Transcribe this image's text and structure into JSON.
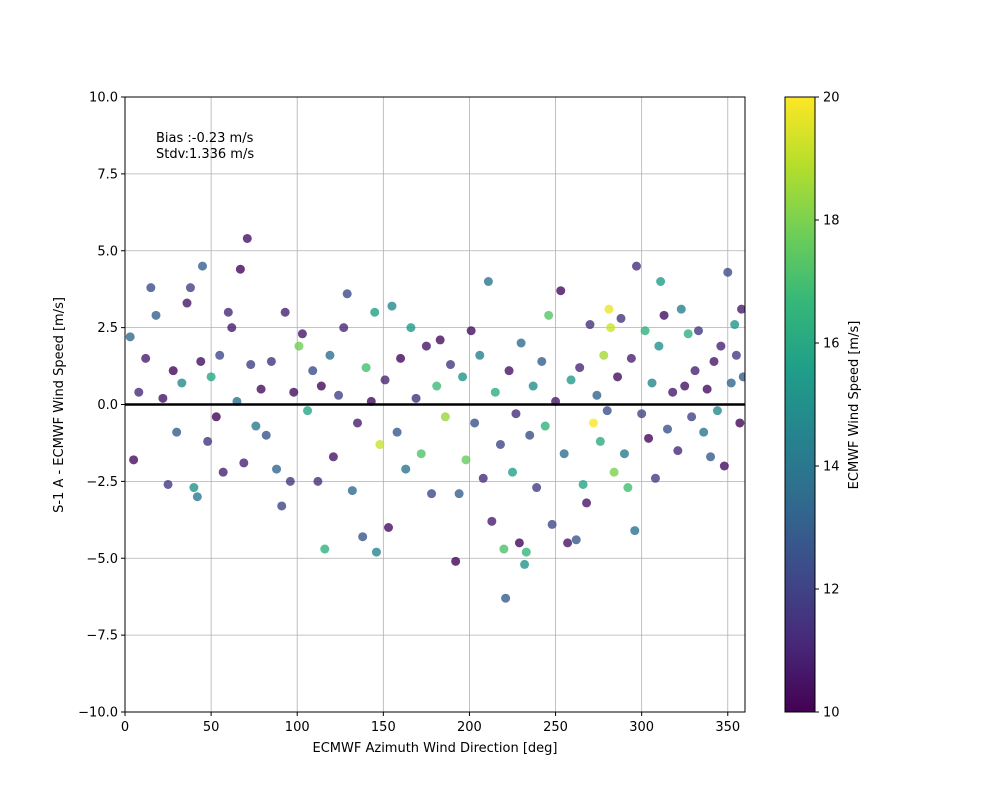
{
  "chart_data": {
    "type": "scatter",
    "title": "",
    "xlabel": "ECMWF Azimuth Wind Direction [deg]",
    "ylabel": "S-1 A - ECMWF Wind Speed [m/s]",
    "xlim": [
      0,
      360
    ],
    "ylim": [
      -10,
      10
    ],
    "xticks": [
      0,
      50,
      100,
      150,
      200,
      250,
      300,
      350
    ],
    "yticks": [
      -10.0,
      -7.5,
      -5.0,
      -2.5,
      0.0,
      2.5,
      5.0,
      7.5,
      10.0
    ],
    "ytick_labels": [
      "−10.0",
      "−7.5",
      "−5.0",
      "−2.5",
      "0.0",
      "2.5",
      "5.0",
      "7.5",
      "10.0"
    ],
    "grid": true,
    "zero_line": 0,
    "annotation_lines": [
      "Bias :-0.23 m/s",
      "Stdv:1.336 m/s"
    ],
    "colorbar": {
      "label": "ECMWF Wind Speed [m/s]",
      "range": [
        10,
        20
      ],
      "ticks": [
        10,
        12,
        14,
        16,
        18,
        20
      ],
      "colormap": "viridis",
      "colors": [
        "#440154",
        "#482878",
        "#3e4989",
        "#31688e",
        "#26828e",
        "#1f9e89",
        "#35b779",
        "#6ece58",
        "#b5de2b",
        "#fde725"
      ]
    },
    "points": [
      [
        3,
        2.2,
        13.5
      ],
      [
        5,
        -1.8,
        10.3
      ],
      [
        8,
        0.4,
        11.2
      ],
      [
        12,
        1.5,
        10.8
      ],
      [
        15,
        3.8,
        12.4
      ],
      [
        18,
        2.9,
        13.1
      ],
      [
        22,
        0.2,
        10.5
      ],
      [
        25,
        -2.6,
        11.7
      ],
      [
        28,
        1.1,
        10.2
      ],
      [
        30,
        -0.9,
        12.9
      ],
      [
        33,
        0.7,
        14.8
      ],
      [
        36,
        3.3,
        10.6
      ],
      [
        38,
        3.8,
        12.0
      ],
      [
        40,
        -2.7,
        15.2
      ],
      [
        42,
        -3.0,
        14.1
      ],
      [
        44,
        1.4,
        10.4
      ],
      [
        45,
        4.5,
        13.0
      ],
      [
        48,
        -1.2,
        11.5
      ],
      [
        50,
        0.9,
        16.0
      ],
      [
        53,
        -0.4,
        10.1
      ],
      [
        55,
        1.6,
        12.2
      ],
      [
        57,
        -2.2,
        10.9
      ],
      [
        60,
        3.0,
        11.1
      ],
      [
        62,
        2.5,
        10.7
      ],
      [
        65,
        0.1,
        13.8
      ],
      [
        67,
        4.4,
        10.2
      ],
      [
        69,
        -1.9,
        11.0
      ],
      [
        71,
        5.4,
        10.5
      ],
      [
        73,
        1.3,
        11.9
      ],
      [
        76,
        -0.7,
        14.0
      ],
      [
        79,
        0.5,
        10.3
      ],
      [
        82,
        -1.0,
        12.6
      ],
      [
        85,
        1.4,
        11.4
      ],
      [
        88,
        -2.1,
        13.3
      ],
      [
        91,
        -3.3,
        12.1
      ],
      [
        93,
        3.0,
        10.9
      ],
      [
        96,
        -2.5,
        11.6
      ],
      [
        98,
        0.4,
        10.4
      ],
      [
        101,
        1.9,
        17.8
      ],
      [
        103,
        2.3,
        10.6
      ],
      [
        106,
        -0.2,
        15.9
      ],
      [
        109,
        1.1,
        12.4
      ],
      [
        112,
        -2.5,
        11.3
      ],
      [
        114,
        0.6,
        10.2
      ],
      [
        116,
        -4.7,
        16.4
      ],
      [
        119,
        1.6,
        13.6
      ],
      [
        121,
        -1.7,
        10.5
      ],
      [
        124,
        0.3,
        12.0
      ],
      [
        127,
        2.5,
        11.1
      ],
      [
        129,
        3.6,
        12.3
      ],
      [
        132,
        -2.8,
        13.4
      ],
      [
        135,
        -0.6,
        10.8
      ],
      [
        138,
        -4.3,
        12.7
      ],
      [
        140,
        1.2,
        17.0
      ],
      [
        143,
        0.1,
        10.3
      ],
      [
        145,
        3.0,
        15.6
      ],
      [
        146,
        -4.8,
        14.6
      ],
      [
        148,
        -1.3,
        19.2
      ],
      [
        151,
        0.8,
        11.0
      ],
      [
        153,
        -4.0,
        10.4
      ],
      [
        155,
        3.2,
        14.7
      ],
      [
        158,
        -0.9,
        12.8
      ],
      [
        160,
        1.5,
        10.2
      ],
      [
        163,
        -2.1,
        13.9
      ],
      [
        166,
        2.5,
        15.3
      ],
      [
        169,
        0.2,
        11.4
      ],
      [
        172,
        -1.6,
        17.2
      ],
      [
        175,
        1.9,
        10.6
      ],
      [
        178,
        -2.9,
        12.2
      ],
      [
        181,
        0.6,
        16.8
      ],
      [
        183,
        2.1,
        10.3
      ],
      [
        186,
        -0.4,
        18.4
      ],
      [
        189,
        1.3,
        11.7
      ],
      [
        192,
        -5.1,
        10.1
      ],
      [
        194,
        -2.9,
        13.0
      ],
      [
        196,
        0.9,
        15.1
      ],
      [
        198,
        -1.8,
        17.6
      ],
      [
        201,
        2.4,
        10.4
      ],
      [
        203,
        -0.6,
        12.5
      ],
      [
        206,
        1.6,
        14.4
      ],
      [
        208,
        -2.4,
        11.2
      ],
      [
        211,
        4.0,
        13.9
      ],
      [
        213,
        -3.8,
        10.8
      ],
      [
        215,
        0.4,
        16.2
      ],
      [
        218,
        -1.3,
        12.1
      ],
      [
        220,
        -4.7,
        17.1
      ],
      [
        221,
        -6.3,
        12.9
      ],
      [
        223,
        1.1,
        10.5
      ],
      [
        225,
        -2.2,
        15.7
      ],
      [
        227,
        -0.3,
        11.3
      ],
      [
        229,
        -4.5,
        10.2
      ],
      [
        230,
        2.0,
        13.5
      ],
      [
        232,
        -5.2,
        15.1
      ],
      [
        233,
        -4.8,
        16.6
      ],
      [
        235,
        -1.0,
        12.4
      ],
      [
        237,
        0.6,
        14.9
      ],
      [
        239,
        -2.7,
        11.8
      ],
      [
        242,
        1.4,
        13.0
      ],
      [
        244,
        -0.7,
        16.5
      ],
      [
        246,
        2.9,
        17.3
      ],
      [
        248,
        -3.9,
        12.2
      ],
      [
        250,
        0.1,
        10.7
      ],
      [
        253,
        3.7,
        10.3
      ],
      [
        255,
        -1.6,
        13.6
      ],
      [
        257,
        -4.5,
        10.5
      ],
      [
        259,
        0.8,
        15.4
      ],
      [
        262,
        -4.4,
        12.7
      ],
      [
        264,
        1.2,
        11.1
      ],
      [
        266,
        -2.6,
        15.8
      ],
      [
        268,
        -3.2,
        10.6
      ],
      [
        270,
        2.6,
        11.4
      ],
      [
        272,
        -0.6,
        19.9
      ],
      [
        274,
        0.3,
        13.2
      ],
      [
        276,
        -1.2,
        16.1
      ],
      [
        278,
        1.6,
        18.6
      ],
      [
        280,
        -0.2,
        12.5
      ],
      [
        281,
        3.1,
        19.7
      ],
      [
        282,
        2.5,
        19.2
      ],
      [
        284,
        -2.2,
        18.0
      ],
      [
        286,
        0.9,
        10.4
      ],
      [
        288,
        2.8,
        11.5
      ],
      [
        290,
        -1.6,
        14.2
      ],
      [
        292,
        -2.7,
        16.9
      ],
      [
        294,
        1.5,
        10.9
      ],
      [
        296,
        -4.1,
        13.7
      ],
      [
        297,
        4.5,
        11.3
      ],
      [
        300,
        -0.3,
        12.1
      ],
      [
        302,
        2.4,
        16.4
      ],
      [
        304,
        -1.1,
        10.2
      ],
      [
        306,
        0.7,
        14.6
      ],
      [
        308,
        -2.4,
        11.8
      ],
      [
        310,
        1.9,
        15.0
      ],
      [
        311,
        4.0,
        15.5
      ],
      [
        313,
        2.9,
        10.4
      ],
      [
        315,
        -0.8,
        12.6
      ],
      [
        318,
        0.4,
        10.7
      ],
      [
        321,
        -1.5,
        11.2
      ],
      [
        323,
        3.1,
        14.3
      ],
      [
        325,
        0.6,
        10.5
      ],
      [
        327,
        2.3,
        16.3
      ],
      [
        329,
        -0.4,
        12.0
      ],
      [
        331,
        1.1,
        10.9
      ],
      [
        333,
        2.4,
        11.6
      ],
      [
        336,
        -0.9,
        13.9
      ],
      [
        338,
        0.5,
        10.3
      ],
      [
        340,
        -1.7,
        12.8
      ],
      [
        342,
        1.4,
        10.6
      ],
      [
        344,
        -0.2,
        14.7
      ],
      [
        346,
        1.9,
        11.0
      ],
      [
        348,
        -2.0,
        10.4
      ],
      [
        350,
        4.3,
        12.4
      ],
      [
        352,
        0.7,
        13.3
      ],
      [
        354,
        2.6,
        15.2
      ],
      [
        355,
        1.6,
        11.8
      ],
      [
        357,
        -0.6,
        10.2
      ],
      [
        358,
        3.1,
        10.7
      ],
      [
        359,
        0.9,
        12.9
      ]
    ]
  }
}
